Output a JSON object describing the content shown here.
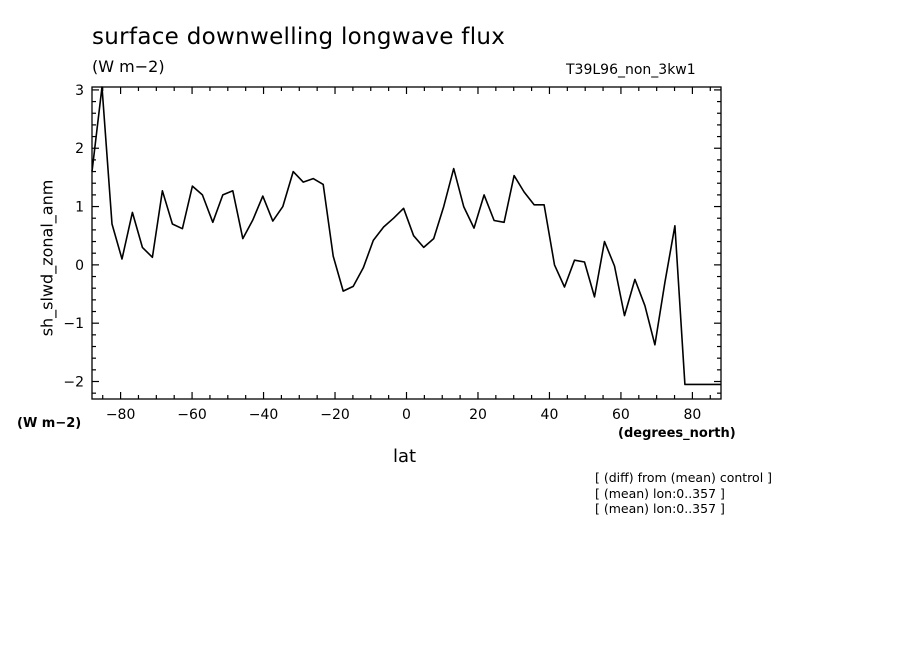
{
  "title": "surface downwelling longwave flux",
  "units_top": "(W m−2)",
  "run_label": "T39L96_non_3kw1",
  "units_left": "(W m−2)",
  "x_units": "(degrees_north)",
  "notes": [
    "[ (diff) from (mean) control ]",
    "[ (mean) lon:0..357 ]",
    "[ (mean) lon:0..357 ]"
  ],
  "chart_data": {
    "type": "line",
    "title": "surface downwelling longwave flux",
    "xlabel": "lat",
    "ylabel": "sh_slwd_zonal_anm",
    "xlim": [
      -88,
      88
    ],
    "ylim": [
      -2.3,
      3.05
    ],
    "x_ticks": [
      -80,
      -60,
      -40,
      -20,
      0,
      20,
      40,
      60,
      80
    ],
    "x_tick_labels": [
      "−80",
      "−60",
      "−40",
      "−20",
      "0",
      "20",
      "40",
      "60",
      "80"
    ],
    "y_ticks": [
      -2,
      -1,
      0,
      1,
      2,
      3
    ],
    "y_tick_labels": [
      "−2",
      "−1",
      "0",
      "1",
      "2",
      "3"
    ],
    "grid": false,
    "series": [
      {
        "x": [
          -88,
          -85.2,
          -82.4,
          -79.6,
          -76.7,
          -73.9,
          -71.1,
          -68.3,
          -65.5,
          -62.7,
          -59.9,
          -57.1,
          -54.2,
          -51.4,
          -48.6,
          -45.8,
          -43.0,
          -40.2,
          -37.4,
          -34.6,
          -31.7,
          -28.9,
          -26.1,
          -23.3,
          -20.5,
          -17.7,
          -14.9,
          -12.1,
          -9.3,
          -6.4,
          -3.6,
          -0.8,
          2.0,
          4.8,
          7.6,
          10.4,
          13.2,
          16.0,
          18.9,
          21.7,
          24.5,
          27.3,
          30.1,
          32.9,
          35.7,
          38.5,
          41.4,
          44.2,
          47.0,
          49.8,
          52.6,
          55.4,
          58.2,
          61.0,
          63.9,
          66.7,
          69.5,
          72.3,
          75.1,
          77.9,
          80.7,
          83.5,
          86.3,
          88
        ],
        "values": [
          1.6,
          3.05,
          0.7,
          0.1,
          0.9,
          0.3,
          0.13,
          1.27,
          0.7,
          0.62,
          1.35,
          1.2,
          0.73,
          1.2,
          1.27,
          0.45,
          0.77,
          1.18,
          0.75,
          1.0,
          1.6,
          1.42,
          1.48,
          1.38,
          0.15,
          -0.45,
          -0.37,
          -0.05,
          0.42,
          0.65,
          0.8,
          0.97,
          0.5,
          0.3,
          0.45,
          1.0,
          1.65,
          1.0,
          0.63,
          1.2,
          0.76,
          0.73,
          1.53,
          1.25,
          1.03,
          1.03,
          0.0,
          -0.38,
          0.08,
          0.05,
          -0.55,
          0.4,
          -0.02,
          -0.87,
          -0.25,
          -0.7,
          -1.37,
          -0.3,
          0.67,
          -2.05,
          -2.05,
          -2.05,
          -2.05,
          -2.05
        ]
      }
    ]
  }
}
